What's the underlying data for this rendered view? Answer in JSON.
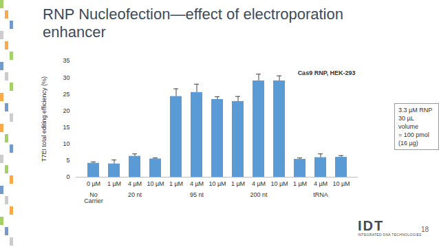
{
  "title": "RNP Nucleofection—effect of electroporation enhancer",
  "chart_data": {
    "type": "bar",
    "annotation": "Cas9 RNP, HEK-293",
    "y_label": "T7EI total editing efficiency (%)",
    "categories": [
      "0 µM",
      "1 µM",
      "4 µM",
      "10 µM",
      "1 µM",
      "4 µM",
      "10 µM",
      "1 µM",
      "4 µM",
      "10 µM",
      "1 µM",
      "4 µM",
      "10 µM"
    ],
    "category_groups": [
      "No Carrier",
      "20 nt",
      "20 nt",
      "20 nt",
      "95 nt",
      "95 nt",
      "95 nt",
      "200 nt",
      "200 nt",
      "200 nt",
      "tRNA",
      "tRNA",
      "tRNA"
    ],
    "values": [
      4.2,
      4.0,
      6.3,
      5.5,
      24.3,
      25.5,
      23.4,
      22.8,
      29.0,
      29.0,
      5.4,
      5.9,
      6.0
    ],
    "errors": [
      0.4,
      1.2,
      0.7,
      0.3,
      2.3,
      2.5,
      0.8,
      1.5,
      2.0,
      1.5,
      0.4,
      1.1,
      0.5
    ],
    "color": "#5b9bd5",
    "ylim": [
      0,
      35
    ],
    "yticks": [
      0,
      5,
      10,
      15,
      20,
      25,
      30,
      35
    ],
    "grid": false
  },
  "note_box": [
    "3.3 µM RNP",
    "30 µL volume",
    "= 100 pmol (16 µg)"
  ],
  "footer": {
    "logo": "IDT",
    "logo_subtitle": "INTEGRATED DNA TECHNOLOGIES",
    "page_number": "18"
  }
}
